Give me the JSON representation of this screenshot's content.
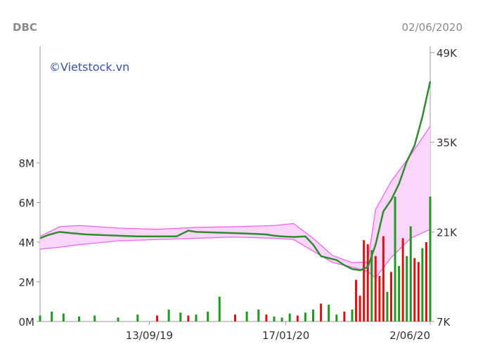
{
  "header": {
    "ticker": "DBC",
    "date": "02/06/2020"
  },
  "watermark": "©Vietstock.vn",
  "colors": {
    "price": "#2e8b2e",
    "band_line": "#ee66ee",
    "band_fill": "#fbd6fb",
    "vol_up": "#1f9a1f",
    "vol_down": "#dd1111",
    "axis": "#9a9a9a"
  },
  "chart_data": {
    "type": "line",
    "title": "",
    "x_ticks": [
      "13/09/19",
      "17/01/20",
      "2/06/20"
    ],
    "price_axis": {
      "ticks": [
        "7K",
        "21K",
        "35K",
        "49K"
      ],
      "range": [
        7000,
        49000
      ],
      "side": "right"
    },
    "volume_axis": {
      "ticks": [
        "0M",
        "2M",
        "4M",
        "6M",
        "8M"
      ],
      "range": [
        0,
        8000000
      ],
      "side": "left"
    },
    "series": [
      {
        "role": "price",
        "x": [
          0,
          0.02,
          0.05,
          0.08,
          0.12,
          0.16,
          0.2,
          0.25,
          0.3,
          0.35,
          0.38,
          0.4,
          0.45,
          0.5,
          0.55,
          0.58,
          0.6,
          0.62,
          0.65,
          0.68,
          0.7,
          0.72,
          0.76,
          0.78,
          0.8,
          0.82,
          0.84,
          0.86,
          0.88,
          0.9,
          0.92,
          0.94,
          0.96,
          0.98,
          1.0
        ],
        "values": [
          20000,
          20500,
          21000,
          20800,
          20600,
          20500,
          20400,
          20300,
          20300,
          20300,
          21200,
          21000,
          20900,
          20800,
          20700,
          20600,
          20400,
          20300,
          20200,
          20300,
          19000,
          17200,
          16600,
          15800,
          15200,
          15000,
          15500,
          19000,
          24200,
          26000,
          28500,
          32000,
          34500,
          39000,
          44500
        ]
      },
      {
        "role": "band_upper",
        "x": [
          0,
          0.05,
          0.1,
          0.2,
          0.3,
          0.4,
          0.5,
          0.6,
          0.65,
          0.7,
          0.75,
          0.8,
          0.84,
          0.86,
          0.9,
          0.95,
          1.0
        ],
        "values": [
          20300,
          21800,
          22000,
          21600,
          21400,
          21700,
          21800,
          22000,
          22300,
          20000,
          17300,
          16200,
          16300,
          24500,
          28900,
          33000,
          37500
        ]
      },
      {
        "role": "band_lower",
        "x": [
          0,
          0.05,
          0.1,
          0.2,
          0.3,
          0.4,
          0.5,
          0.6,
          0.65,
          0.7,
          0.75,
          0.8,
          0.84,
          0.86,
          0.9,
          0.95,
          1.0
        ],
        "values": [
          18300,
          18600,
          19000,
          19600,
          19800,
          20000,
          20200,
          20000,
          19800,
          18000,
          16200,
          15500,
          14800,
          13800,
          17000,
          20000,
          21400
        ]
      },
      {
        "role": "volume",
        "x": [
          0,
          0.03,
          0.06,
          0.1,
          0.14,
          0.2,
          0.25,
          0.3,
          0.33,
          0.36,
          0.38,
          0.4,
          0.43,
          0.46,
          0.5,
          0.53,
          0.56,
          0.58,
          0.6,
          0.62,
          0.64,
          0.66,
          0.68,
          0.7,
          0.72,
          0.74,
          0.76,
          0.78,
          0.8,
          0.81,
          0.82,
          0.83,
          0.84,
          0.85,
          0.86,
          0.87,
          0.88,
          0.89,
          0.9,
          0.91,
          0.92,
          0.93,
          0.94,
          0.95,
          0.96,
          0.97,
          0.98,
          0.99,
          1.0
        ],
        "values": [
          300000,
          500000,
          400000,
          250000,
          300000,
          200000,
          350000,
          300000,
          600000,
          450000,
          300000,
          350000,
          500000,
          1250000,
          350000,
          500000,
          600000,
          350000,
          250000,
          200000,
          400000,
          300000,
          450000,
          600000,
          900000,
          850000,
          350000,
          500000,
          600000,
          2100000,
          1300000,
          4100000,
          3900000,
          3600000,
          3300000,
          2300000,
          4300000,
          1500000,
          2500000,
          6300000,
          2800000,
          4200000,
          3300000,
          4800000,
          3200000,
          3000000,
          3700000,
          4000000,
          6300000
        ],
        "up": [
          1,
          1,
          1,
          1,
          1,
          1,
          1,
          0,
          1,
          1,
          0,
          1,
          1,
          1,
          0,
          1,
          1,
          0,
          1,
          1,
          1,
          0,
          1,
          1,
          0,
          1,
          1,
          0,
          1,
          0,
          0,
          0,
          0,
          1,
          0,
          0,
          0,
          1,
          0,
          1,
          1,
          0,
          1,
          1,
          0,
          0,
          1,
          0,
          1
        ]
      }
    ]
  }
}
